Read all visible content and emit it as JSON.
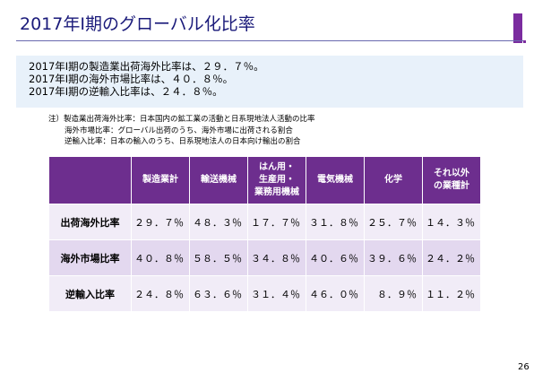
{
  "title": "2017年Ⅰ期のグローバル化比率",
  "summary": [
    "2017年Ⅰ期の製造業出荷海外比率は、２９．７％。",
    "2017年Ⅰ期の海外市場比率は、４０．８％。",
    "2017年Ⅰ期の逆輸入比率は、２４．８％。"
  ],
  "notes": [
    "注）製造業出荷海外比率：日本国内の鉱工業の活動と日系現地法人活動の比率",
    "海外市場比率：グローバル出荷のうち、海外市場に出荷される割合",
    "逆輸入比率：日本の輸入のうち、日系現地法人の日本向け輸出の割合"
  ],
  "table": {
    "headers": [
      "製造業計",
      "輸送機械",
      "はん用・\n生産用・\n業務用機械",
      "電気機械",
      "化学",
      "それ以外\nの業種計"
    ],
    "rows": [
      {
        "label": "出荷海外比率",
        "values": [
          "29.7%",
          "48.3%",
          "17.7%",
          "31.8%",
          "25.7%",
          "14.3%"
        ]
      },
      {
        "label": "海外市場比率",
        "values": [
          "40.8%",
          "58.5%",
          "34.8%",
          "40.6%",
          "39.6%",
          "24.2%"
        ]
      },
      {
        "label": "逆輸入比率",
        "values": [
          "24.8%",
          "63.6%",
          "31.4%",
          "46.0%",
          "8.9%",
          "11.2%"
        ]
      }
    ]
  },
  "colors": {
    "header": "#6d2e8e",
    "accent": "#7b2c9f",
    "summary_bg": "#e8f1fa"
  },
  "page_number": "26"
}
